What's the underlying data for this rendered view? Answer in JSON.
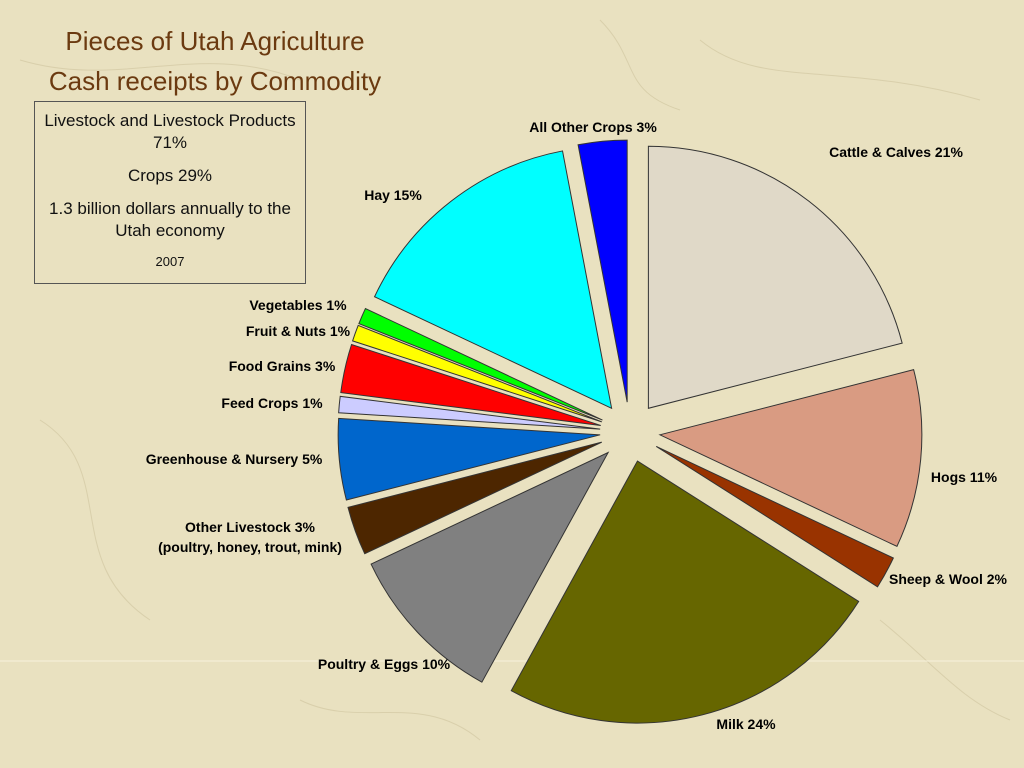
{
  "title": "Pieces of Utah Agriculture",
  "subtitle": "Cash receipts by Commodity",
  "info_box": {
    "line1": "Livestock and Livestock Products 71%",
    "line2": "Crops 29%",
    "line3": "1.3 billion dollars annually to the Utah economy",
    "line4": "2007"
  },
  "chart_data": {
    "type": "pie",
    "exploded": true,
    "slices": [
      {
        "label": "Cattle & Calves 21%",
        "value": 21,
        "color": "#e0d9c8"
      },
      {
        "label": "Hogs 11%",
        "value": 11,
        "color": "#d99b82"
      },
      {
        "label": "Sheep & Wool 2%",
        "value": 2,
        "color": "#993300"
      },
      {
        "label": "Milk 24%",
        "value": 24,
        "color": "#666600"
      },
      {
        "label": "Poultry & Eggs 10%",
        "value": 10,
        "color": "#808080"
      },
      {
        "label": "Other Livestock 3%",
        "label2": "(poultry, honey, trout, mink)",
        "value": 3,
        "color": "#4d2600"
      },
      {
        "label": "Greenhouse & Nursery 5%",
        "value": 5,
        "color": "#0066cc"
      },
      {
        "label": "Feed Crops 1%",
        "value": 1,
        "color": "#ccccff"
      },
      {
        "label": "Food Grains 3%",
        "value": 3,
        "color": "#ff0000"
      },
      {
        "label": "Fruit & Nuts 1%",
        "value": 1,
        "color": "#ffff00"
      },
      {
        "label": "Vegetables 1%",
        "value": 1,
        "color": "#00ff00"
      },
      {
        "label": "Hay 15%",
        "value": 15,
        "color": "#00ffff"
      },
      {
        "label": "All Other Crops 3%",
        "value": 3,
        "color": "#0000ff"
      }
    ]
  }
}
